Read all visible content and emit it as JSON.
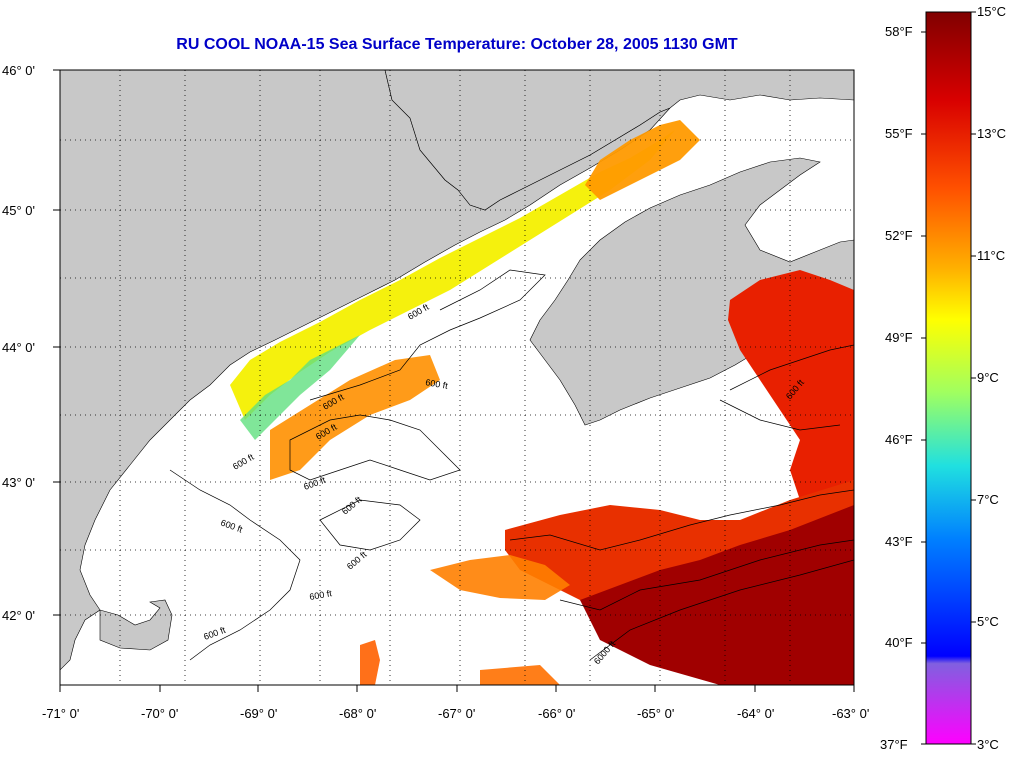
{
  "title": "RU COOL  NOAA-15  Sea Surface Temperature:  October 28, 2005 1130 GMT",
  "map": {
    "lon_labels": [
      "-71° 0'",
      "-70° 0'",
      "-69° 0'",
      "-68° 0'",
      "-67° 0'",
      "-66° 0'",
      "-65° 0'",
      "-64° 0'",
      "-63° 0'"
    ],
    "lat_labels": [
      "46° 0'",
      "45° 0'",
      "44° 0'",
      "43° 0'",
      "42° 0'"
    ],
    "contour_labels": [
      "600 ft",
      "600 ft",
      "600 ft",
      "600 ft",
      "600 ft",
      "600 ft",
      "600 ft",
      "600 ft",
      "600 ft",
      "600 ft",
      "600 ft",
      "600 ft",
      "6000 ft"
    ],
    "land_color": "#c8c8c8",
    "no_data_color": "#ffffff"
  },
  "colorbar": {
    "fahrenheit_labels": [
      "58°F",
      "55°F",
      "52°F",
      "49°F",
      "46°F",
      "43°F",
      "40°F",
      "37°F"
    ],
    "celsius_labels": [
      "15°C",
      "13°C",
      "11°C",
      "9°C",
      "7°C",
      "5°C",
      "3°C"
    ],
    "range_c": [
      3,
      15
    ],
    "range_f": [
      37,
      59
    ]
  }
}
